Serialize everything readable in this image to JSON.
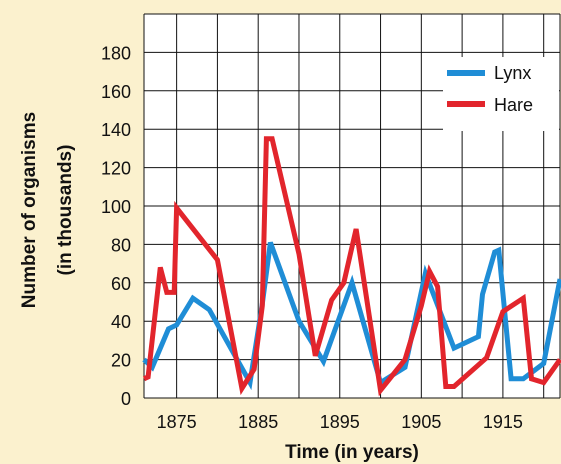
{
  "chart_data": {
    "type": "line",
    "ylabel_lines": [
      "Number of organisms",
      "(in thousands)"
    ],
    "xlabel": "Time (in years)",
    "xlim": [
      1871,
      1922
    ],
    "ylim": [
      0,
      200
    ],
    "x_ticks": [
      1875,
      1885,
      1895,
      1905,
      1915
    ],
    "y_ticks": [
      0,
      20,
      40,
      60,
      80,
      100,
      120,
      140,
      160,
      180
    ],
    "grid": true,
    "legend_position": "top-right",
    "series": [
      {
        "name": "Lynx",
        "color": "#1f8dd6",
        "x": [
          1871,
          1872,
          1874,
          1875,
          1877,
          1879,
          1884,
          1885.5,
          1886.5,
          1890,
          1893,
          1896.5,
          1900,
          1903,
          1905.5,
          1909,
          1912,
          1912.5,
          1914,
          1914.5,
          1916,
          1917.5,
          1920,
          1922
        ],
        "y": [
          20,
          16,
          36,
          38,
          52,
          46,
          8,
          49,
          81,
          40,
          19,
          60,
          8,
          16,
          65,
          26,
          32,
          54,
          76,
          77,
          10,
          10,
          18,
          62
        ]
      },
      {
        "name": "Hare",
        "color": "#e2252c",
        "x": [
          1871,
          1871.5,
          1873,
          1873.8,
          1874.7,
          1875,
          1880,
          1883,
          1884.5,
          1885.5,
          1886,
          1886.7,
          1890,
          1892,
          1894,
          1895.5,
          1897,
          1900,
          1903,
          1905,
          1906,
          1907,
          1908,
          1909,
          1913,
          1915,
          1917.5,
          1918.5,
          1920,
          1922
        ],
        "y": [
          10,
          11,
          68,
          55,
          55,
          99,
          72,
          5,
          15,
          48,
          135,
          135,
          75,
          22,
          51,
          60,
          88,
          4,
          20,
          48,
          66,
          58,
          6,
          6,
          21,
          45,
          52,
          10,
          8,
          20
        ]
      }
    ]
  }
}
